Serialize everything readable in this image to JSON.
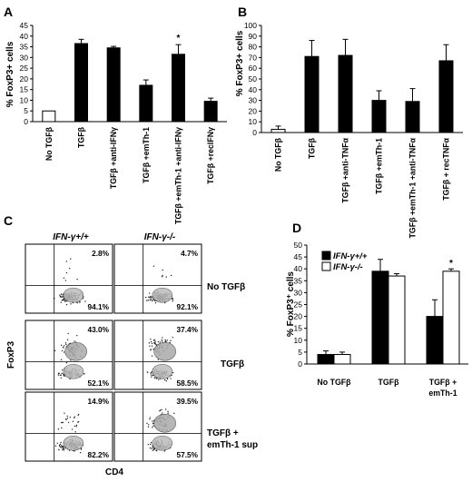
{
  "panels": {
    "A": "A",
    "B": "B",
    "C": "C",
    "D": "D"
  },
  "colors": {
    "black_bar": "#000000",
    "white_bar": "#ffffff",
    "density": "#888888"
  },
  "chart_data": [
    {
      "id": "A",
      "type": "bar",
      "ylabel": "% FoxP3+ cells",
      "ylim": [
        0,
        45
      ],
      "yticks": [
        0,
        5,
        10,
        15,
        20,
        25,
        30,
        35,
        40,
        45
      ],
      "categories": [
        "No TGFβ",
        "TGFβ",
        "TGFβ +anti-IFNγ",
        "TGFβ +emTh-1",
        "TGFβ +emTh-1 +anti-IFNγ",
        "TGFβ +recIFNγ"
      ],
      "values": [
        5,
        36.5,
        34.5,
        17,
        31.5,
        9.5
      ],
      "errors": [
        0,
        2,
        0.7,
        2.5,
        4.5,
        1.5
      ],
      "fills": [
        "white",
        "black",
        "black",
        "black",
        "black",
        "black"
      ],
      "annotations": [
        {
          "category": "TGFβ +emTh-1 +anti-IFNγ",
          "text": "*"
        }
      ],
      "grid": false
    },
    {
      "id": "B",
      "type": "bar",
      "ylabel": "% FoxP3+ cells",
      "ylim": [
        0,
        100
      ],
      "yticks": [
        0,
        10,
        20,
        30,
        40,
        50,
        60,
        70,
        80,
        90,
        100
      ],
      "categories": [
        "No TGFβ",
        "TGFβ",
        "TGFβ +anti-TNFα",
        "TGFβ +emTh-1",
        "TGFβ +emTh-1 +anti-TNFα",
        "TGFβ + recTNFα"
      ],
      "values": [
        3,
        71,
        72,
        30,
        29,
        67
      ],
      "errors": [
        3,
        15,
        15,
        9,
        12,
        15
      ],
      "fills": [
        "white",
        "black",
        "black",
        "black",
        "black",
        "black"
      ],
      "grid": false
    },
    {
      "id": "D",
      "type": "bar",
      "ylabel": "% FoxP3⁺ cells",
      "ylim": [
        0,
        50
      ],
      "yticks": [
        0,
        5,
        10,
        15,
        20,
        25,
        30,
        35,
        40,
        45,
        50
      ],
      "categories": [
        "No TGFβ",
        "TGFβ",
        "TGFβ + emTh-1"
      ],
      "series": [
        {
          "name": "IFN-γ+/+",
          "fill": "black",
          "values": [
            4,
            39,
            20
          ],
          "errors": [
            1.5,
            5,
            7
          ]
        },
        {
          "name": "IFN-γ-/-",
          "fill": "white",
          "values": [
            4,
            37,
            39
          ],
          "errors": [
            1,
            1,
            1
          ]
        }
      ],
      "legend": "top-left",
      "annotations": [
        {
          "category": "TGFβ + emTh-1",
          "series": "IFN-γ-/-",
          "text": "*"
        }
      ],
      "grid": false
    },
    {
      "id": "C",
      "type": "scatter",
      "xlabel": "CD4",
      "ylabel": "FoxP3",
      "columns": [
        "IFN-γ+/+",
        "IFN-γ-/-"
      ],
      "rows": [
        "No TGFβ",
        "TGFβ",
        "TGFβ + emTh-1 sup"
      ],
      "quadrant_percentages": [
        [
          {
            "upper": "2.8%",
            "lower": "94.1%"
          },
          {
            "upper": "4.7%",
            "lower": "92.1%"
          }
        ],
        [
          {
            "upper": "43.0%",
            "lower": "52.1%"
          },
          {
            "upper": "37.4%",
            "lower": "58.5%"
          }
        ],
        [
          {
            "upper": "14.9%",
            "lower": "82.2%"
          },
          {
            "upper": "39.5%",
            "lower": "57.5%"
          }
        ]
      ]
    }
  ],
  "labels": {
    "A_ylabel": "% FoxP3+ cells",
    "B_ylabel": "% FoxP3+ cells",
    "D_ylabel": "% FoxP3⁺ cells",
    "C_ylabel": "FoxP3",
    "C_xlabel": "CD4",
    "C_col1": "IFN-γ+/+",
    "C_col2": "IFN-γ-/-",
    "C_row1": "No TGFβ",
    "C_row2": "TGFβ",
    "C_row3a": "TGFβ +",
    "C_row3b": "emTh-1 sup",
    "D_leg1": "IFN-γ+/+",
    "D_leg2": "IFN-γ-/-",
    "D_cat1": "No TGFβ",
    "D_cat2": "TGFβ",
    "D_cat3a": "TGFβ +",
    "D_cat3b": "emTh-1"
  }
}
